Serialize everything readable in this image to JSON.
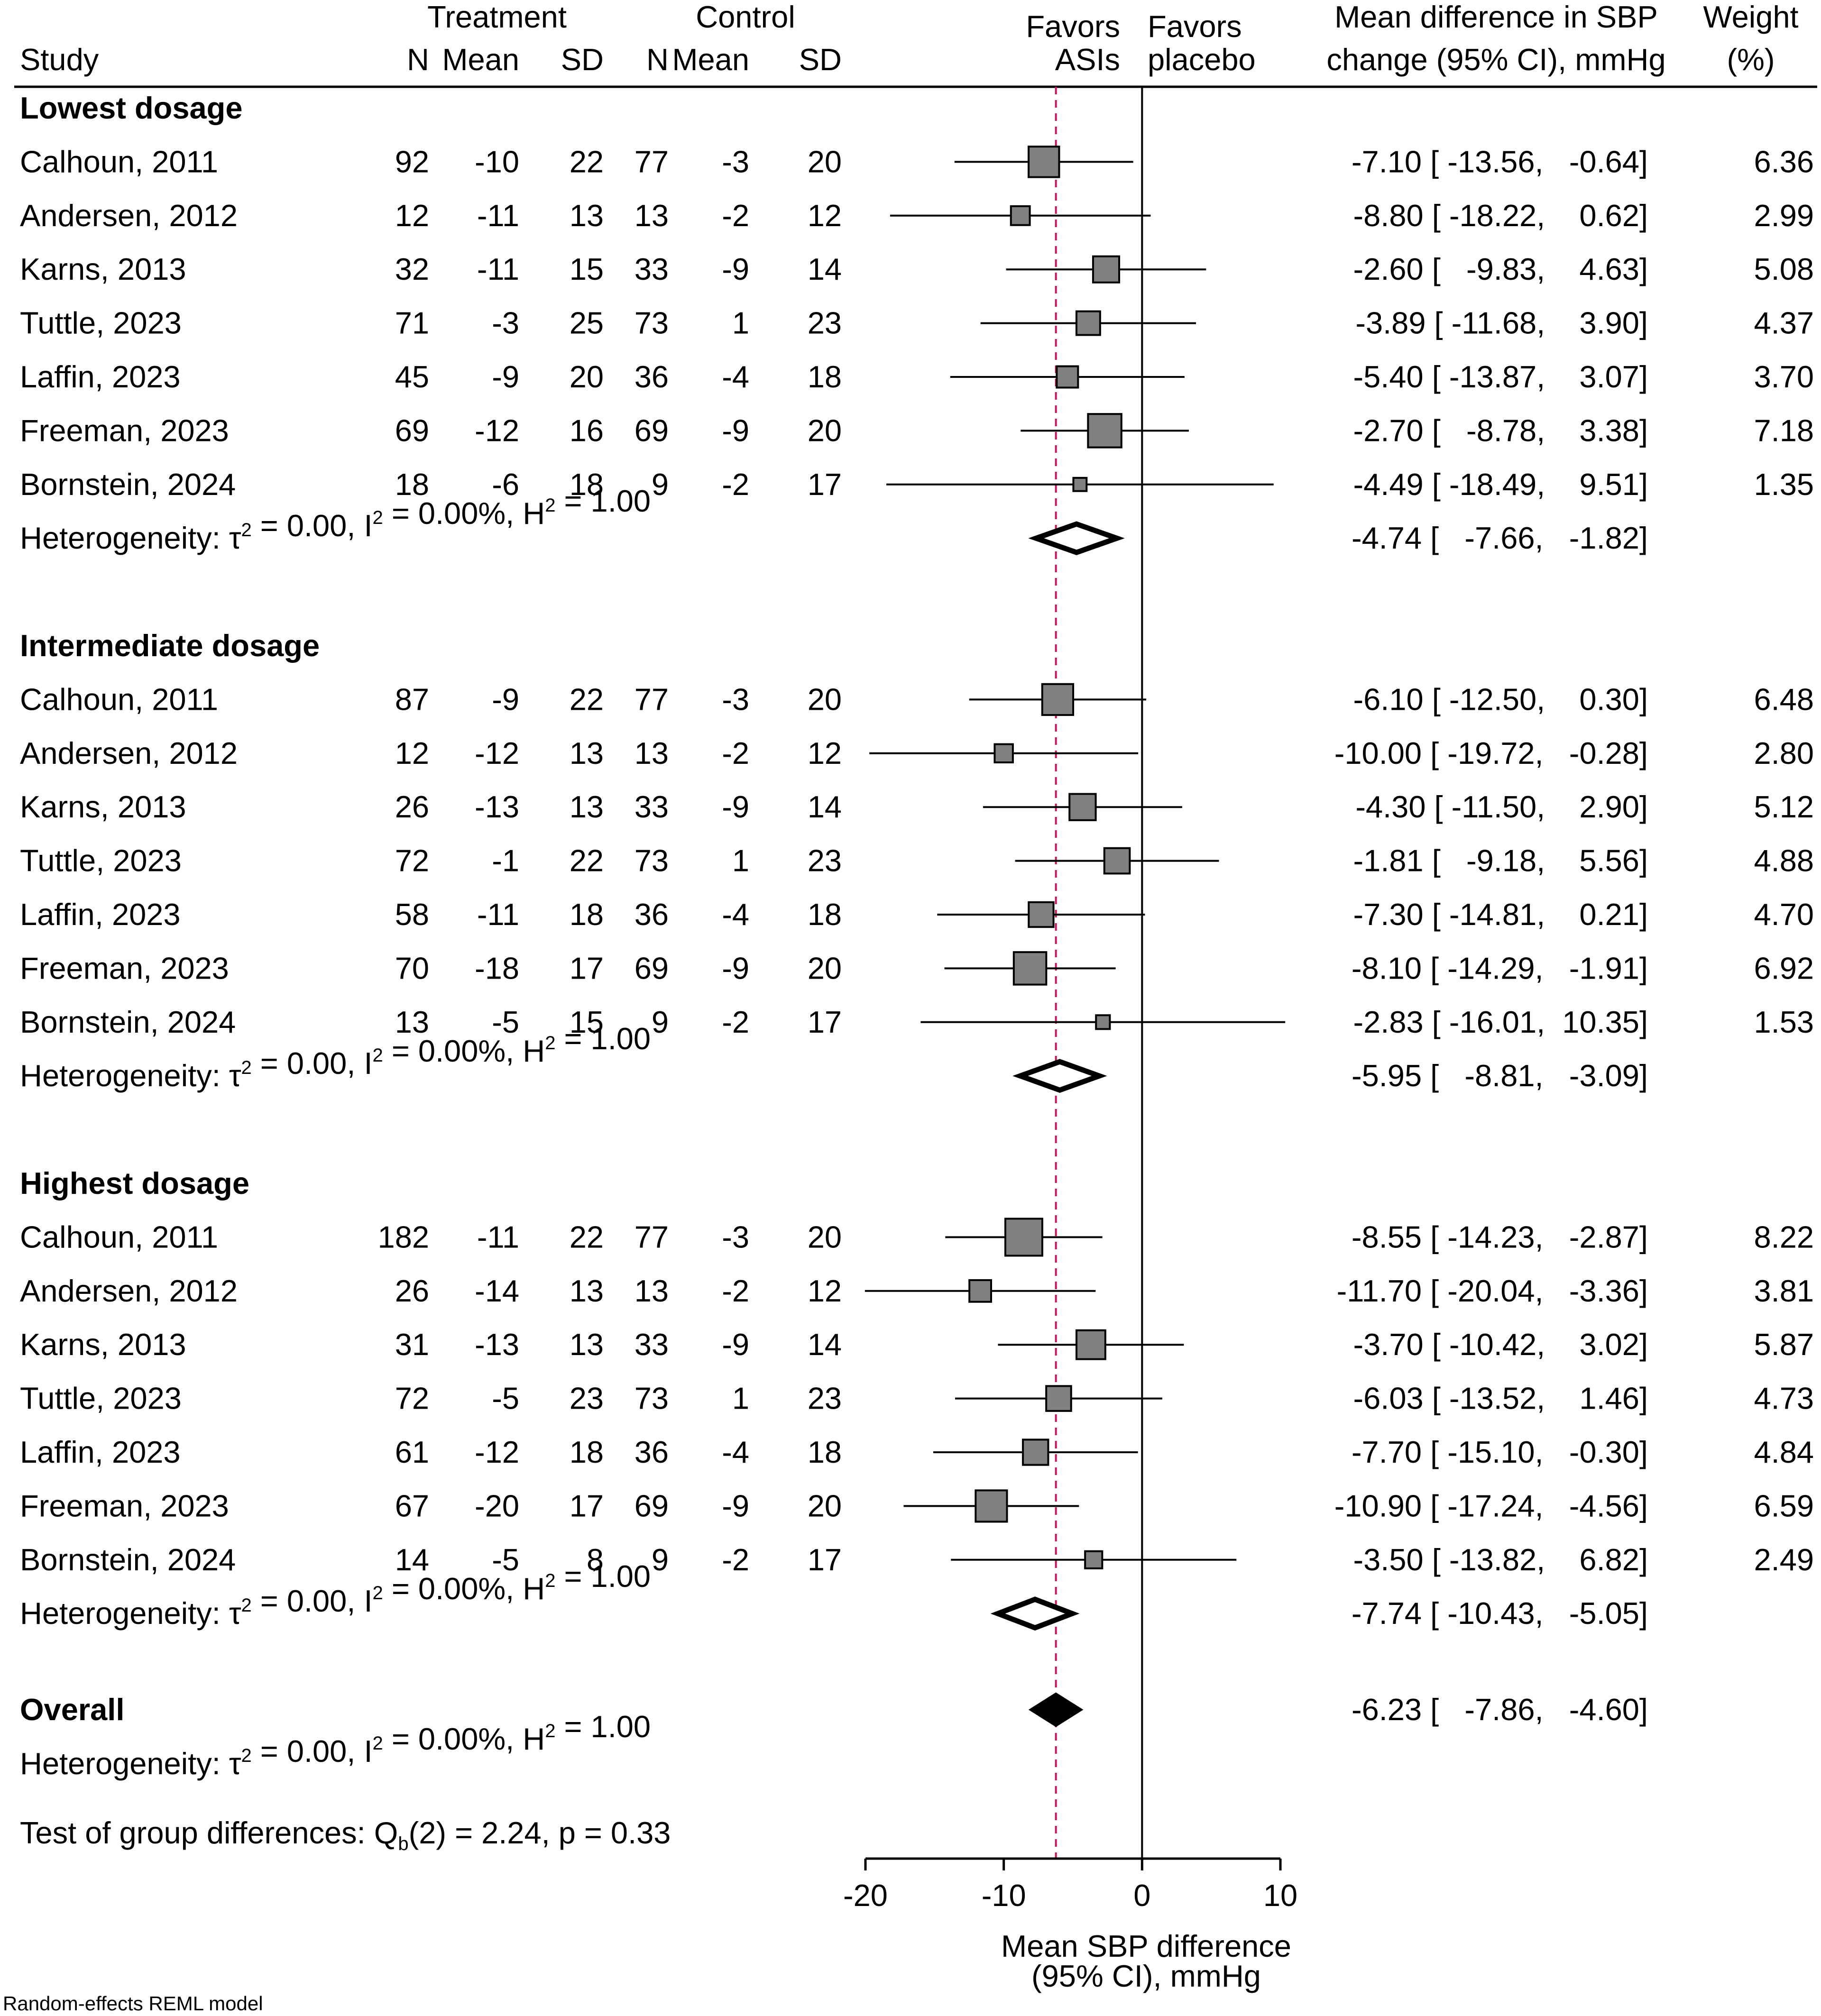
{
  "chart_data": {
    "type": "forest",
    "header": {
      "study": "Study",
      "treatment_group": "Treatment",
      "control_group": "Control",
      "n": "N",
      "mean": "Mean",
      "sd": "SD",
      "favors_left": [
        "Favors",
        "ASIs"
      ],
      "favors_right": [
        "Favors",
        "placebo"
      ],
      "effect": [
        "Mean difference in SBP",
        "change (95% CI), mmHg"
      ],
      "weight": [
        "Weight",
        "(%)"
      ]
    },
    "groups": [
      {
        "label": "Lowest dosage",
        "studies": [
          {
            "study": "Calhoun, 2011",
            "tn": "92",
            "tmean": "-10",
            "tsd": "22",
            "cn": "77",
            "cmean": "-3",
            "csd": "20",
            "md": -7.1,
            "lo": -13.56,
            "hi": -0.64,
            "effect_text": "-7.10 [ -13.56,   -0.64]",
            "weight": 6.36,
            "weight_text": "6.36"
          },
          {
            "study": "Andersen, 2012",
            "tn": "12",
            "tmean": "-11",
            "tsd": "13",
            "cn": "13",
            "cmean": "-2",
            "csd": "12",
            "md": -8.8,
            "lo": -18.22,
            "hi": 0.62,
            "effect_text": "-8.80 [ -18.22,    0.62]",
            "weight": 2.99,
            "weight_text": "2.99"
          },
          {
            "study": "Karns, 2013",
            "tn": "32",
            "tmean": "-11",
            "tsd": "15",
            "cn": "33",
            "cmean": "-9",
            "csd": "14",
            "md": -2.6,
            "lo": -9.83,
            "hi": 4.63,
            "effect_text": "-2.60 [   -9.83,    4.63]",
            "weight": 5.08,
            "weight_text": "5.08"
          },
          {
            "study": "Tuttle, 2023",
            "tn": "71",
            "tmean": "-3",
            "tsd": "25",
            "cn": "73",
            "cmean": "1",
            "csd": "23",
            "md": -3.89,
            "lo": -11.68,
            "hi": 3.9,
            "effect_text": "-3.89 [ -11.68,    3.90]",
            "weight": 4.37,
            "weight_text": "4.37"
          },
          {
            "study": "Laffin, 2023",
            "tn": "45",
            "tmean": "-9",
            "tsd": "20",
            "cn": "36",
            "cmean": "-4",
            "csd": "18",
            "md": -5.4,
            "lo": -13.87,
            "hi": 3.07,
            "effect_text": "-5.40 [ -13.87,    3.07]",
            "weight": 3.7,
            "weight_text": "3.70"
          },
          {
            "study": "Freeman, 2023",
            "tn": "69",
            "tmean": "-12",
            "tsd": "16",
            "cn": "69",
            "cmean": "-9",
            "csd": "20",
            "md": -2.7,
            "lo": -8.78,
            "hi": 3.38,
            "effect_text": "-2.70 [   -8.78,    3.38]",
            "weight": 7.18,
            "weight_text": "7.18"
          },
          {
            "study": "Bornstein, 2024",
            "tn": "18",
            "tmean": "-6",
            "tsd": "18",
            "cn": "9",
            "cmean": "-2",
            "csd": "17",
            "md": -4.49,
            "lo": -18.49,
            "hi": 9.51,
            "effect_text": "-4.49 [ -18.49,    9.51]",
            "weight": 1.35,
            "weight_text": "1.35"
          }
        ],
        "pooled": {
          "md": -4.74,
          "lo": -7.66,
          "hi": -1.82,
          "effect_text": "-4.74 [   -7.66,   -1.82]"
        },
        "het": {
          "a": "Heterogeneity: τ",
          "b": " = 0.00, I",
          "c": " = 0.00%, H",
          "d": " = 1.00",
          "sup": "2"
        }
      },
      {
        "label": "Intermediate dosage",
        "studies": [
          {
            "study": "Calhoun, 2011",
            "tn": "87",
            "tmean": "-9",
            "tsd": "22",
            "cn": "77",
            "cmean": "-3",
            "csd": "20",
            "md": -6.1,
            "lo": -12.5,
            "hi": 0.3,
            "effect_text": "-6.10 [ -12.50,    0.30]",
            "weight": 6.48,
            "weight_text": "6.48"
          },
          {
            "study": "Andersen, 2012",
            "tn": "12",
            "tmean": "-12",
            "tsd": "13",
            "cn": "13",
            "cmean": "-2",
            "csd": "12",
            "md": -10.0,
            "lo": -19.72,
            "hi": -0.28,
            "effect_text": "-10.00 [ -19.72,   -0.28]",
            "weight": 2.8,
            "weight_text": "2.80"
          },
          {
            "study": "Karns, 2013",
            "tn": "26",
            "tmean": "-13",
            "tsd": "13",
            "cn": "33",
            "cmean": "-9",
            "csd": "14",
            "md": -4.3,
            "lo": -11.5,
            "hi": 2.9,
            "effect_text": "-4.30 [ -11.50,    2.90]",
            "weight": 5.12,
            "weight_text": "5.12"
          },
          {
            "study": "Tuttle, 2023",
            "tn": "72",
            "tmean": "-1",
            "tsd": "22",
            "cn": "73",
            "cmean": "1",
            "csd": "23",
            "md": -1.81,
            "lo": -9.18,
            "hi": 5.56,
            "effect_text": "-1.81 [   -9.18,    5.56]",
            "weight": 4.88,
            "weight_text": "4.88"
          },
          {
            "study": "Laffin, 2023",
            "tn": "58",
            "tmean": "-11",
            "tsd": "18",
            "cn": "36",
            "cmean": "-4",
            "csd": "18",
            "md": -7.3,
            "lo": -14.81,
            "hi": 0.21,
            "effect_text": "-7.30 [ -14.81,    0.21]",
            "weight": 4.7,
            "weight_text": "4.70"
          },
          {
            "study": "Freeman, 2023",
            "tn": "70",
            "tmean": "-18",
            "tsd": "17",
            "cn": "69",
            "cmean": "-9",
            "csd": "20",
            "md": -8.1,
            "lo": -14.29,
            "hi": -1.91,
            "effect_text": "-8.10 [ -14.29,   -1.91]",
            "weight": 6.92,
            "weight_text": "6.92"
          },
          {
            "study": "Bornstein, 2024",
            "tn": "13",
            "tmean": "-5",
            "tsd": "15",
            "cn": "9",
            "cmean": "-2",
            "csd": "17",
            "md": -2.83,
            "lo": -16.01,
            "hi": 10.35,
            "effect_text": "-2.83 [ -16.01,  10.35]",
            "weight": 1.53,
            "weight_text": "1.53"
          }
        ],
        "pooled": {
          "md": -5.95,
          "lo": -8.81,
          "hi": -3.09,
          "effect_text": "-5.95 [   -8.81,   -3.09]"
        },
        "het": {
          "a": "Heterogeneity: τ",
          "b": " = 0.00, I",
          "c": " = 0.00%, H",
          "d": " = 1.00",
          "sup": "2"
        }
      },
      {
        "label": "Highest dosage",
        "studies": [
          {
            "study": "Calhoun, 2011",
            "tn": "182",
            "tmean": "-11",
            "tsd": "22",
            "cn": "77",
            "cmean": "-3",
            "csd": "20",
            "md": -8.55,
            "lo": -14.23,
            "hi": -2.87,
            "effect_text": "-8.55 [ -14.23,   -2.87]",
            "weight": 8.22,
            "weight_text": "8.22"
          },
          {
            "study": "Andersen, 2012",
            "tn": "26",
            "tmean": "-14",
            "tsd": "13",
            "cn": "13",
            "cmean": "-2",
            "csd": "12",
            "md": -11.7,
            "lo": -20.04,
            "hi": -3.36,
            "effect_text": "-11.70 [ -20.04,   -3.36]",
            "weight": 3.81,
            "weight_text": "3.81"
          },
          {
            "study": "Karns, 2013",
            "tn": "31",
            "tmean": "-13",
            "tsd": "13",
            "cn": "33",
            "cmean": "-9",
            "csd": "14",
            "md": -3.7,
            "lo": -10.42,
            "hi": 3.02,
            "effect_text": "-3.70 [ -10.42,    3.02]",
            "weight": 5.87,
            "weight_text": "5.87"
          },
          {
            "study": "Tuttle, 2023",
            "tn": "72",
            "tmean": "-5",
            "tsd": "23",
            "cn": "73",
            "cmean": "1",
            "csd": "23",
            "md": -6.03,
            "lo": -13.52,
            "hi": 1.46,
            "effect_text": "-6.03 [ -13.52,    1.46]",
            "weight": 4.73,
            "weight_text": "4.73"
          },
          {
            "study": "Laffin, 2023",
            "tn": "61",
            "tmean": "-12",
            "tsd": "18",
            "cn": "36",
            "cmean": "-4",
            "csd": "18",
            "md": -7.7,
            "lo": -15.1,
            "hi": -0.3,
            "effect_text": "-7.70 [ -15.10,   -0.30]",
            "weight": 4.84,
            "weight_text": "4.84"
          },
          {
            "study": "Freeman, 2023",
            "tn": "67",
            "tmean": "-20",
            "tsd": "17",
            "cn": "69",
            "cmean": "-9",
            "csd": "20",
            "md": -10.9,
            "lo": -17.24,
            "hi": -4.56,
            "effect_text": "-10.90 [ -17.24,   -4.56]",
            "weight": 6.59,
            "weight_text": "6.59"
          },
          {
            "study": "Bornstein, 2024",
            "tn": "14",
            "tmean": "-5",
            "tsd": "8",
            "cn": "9",
            "cmean": "-2",
            "csd": "17",
            "md": -3.5,
            "lo": -13.82,
            "hi": 6.82,
            "effect_text": "-3.50 [ -13.82,    6.82]",
            "weight": 2.49,
            "weight_text": "2.49"
          }
        ],
        "pooled": {
          "md": -7.74,
          "lo": -10.43,
          "hi": -5.05,
          "effect_text": "-7.74 [ -10.43,   -5.05]"
        },
        "het": {
          "a": "Heterogeneity: τ",
          "b": " = 0.00, I",
          "c": " = 0.00%, H",
          "d": " = 1.00",
          "sup": "2"
        }
      }
    ],
    "overall": {
      "label": "Overall",
      "md": -6.23,
      "lo": -7.86,
      "hi": -4.6,
      "effect_text": "-6.23 [   -7.86,   -4.60]",
      "het": {
        "a": "Heterogeneity: τ",
        "b": " = 0.00, I",
        "c": " = 0.00%, H",
        "d": " = 1.00",
        "sup": "2"
      }
    },
    "group_test": {
      "a": "Test of group differences: Q",
      "sub": "b",
      "b": "(2) = 2.24, p = 0.33"
    },
    "reference_line": -6.23,
    "null_line": 0,
    "xlim": [
      -20,
      10
    ],
    "x_ticks": [
      -20,
      -10,
      0,
      10
    ],
    "x_tick_labels": [
      "-20",
      "-10",
      "0",
      "10"
    ],
    "xlabel": [
      "Mean SBP difference",
      "(95% CI), mmHg"
    ],
    "footnote": "Random-effects REML model",
    "colors": {
      "marker": "#808080",
      "reference_line": "#c2185b",
      "overall": "#000000",
      "text": "#000000"
    }
  }
}
